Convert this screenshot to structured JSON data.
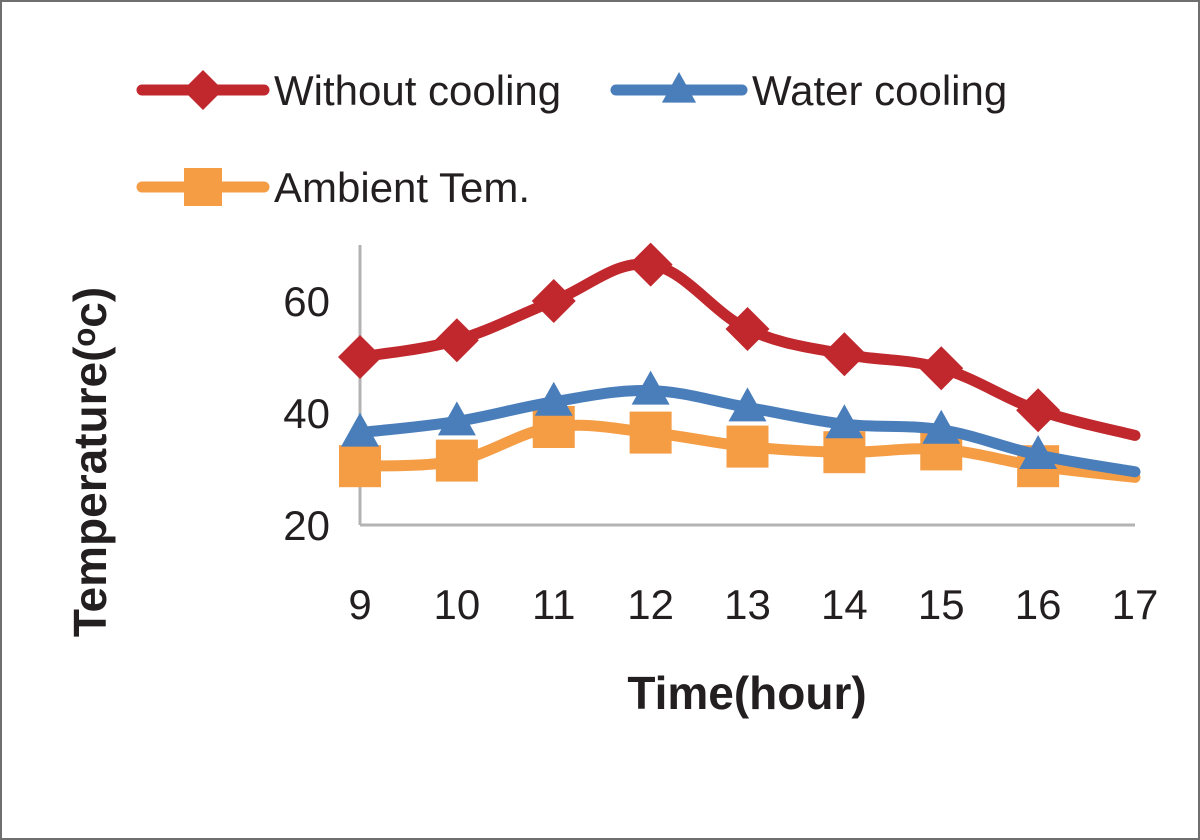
{
  "chart_data": {
    "type": "line",
    "title": "",
    "xlabel": "Time(hour)",
    "ylabel": "Temperature(ᵒc)",
    "x": [
      9,
      10,
      11,
      12,
      13,
      14,
      15,
      16,
      17
    ],
    "x_tick_labels": [
      "9",
      "10",
      "11",
      "12",
      "13",
      "14",
      "15",
      "16",
      "17"
    ],
    "ylim": [
      20,
      70
    ],
    "y_ticks": [
      20,
      40,
      60
    ],
    "y_tick_labels": [
      "20",
      "40",
      "60"
    ],
    "grid": false,
    "legend_position": "top",
    "series": [
      {
        "name": "Without cooling",
        "color": "#c0282d",
        "marker": "diamond",
        "values": [
          50,
          53,
          60,
          66.5,
          55,
          50.5,
          48,
          40.5,
          36
        ]
      },
      {
        "name": "Water cooling",
        "color": "#4a7ebb",
        "marker": "triangle",
        "values": [
          36.5,
          38.5,
          42,
          44,
          41,
          38,
          37,
          32.5,
          29.5
        ]
      },
      {
        "name": "Ambient Tem.",
        "color": "#f59d45",
        "marker": "square",
        "values": [
          30.5,
          31.5,
          37.5,
          36.5,
          34,
          33,
          33.5,
          30.5,
          28.5
        ]
      }
    ]
  }
}
